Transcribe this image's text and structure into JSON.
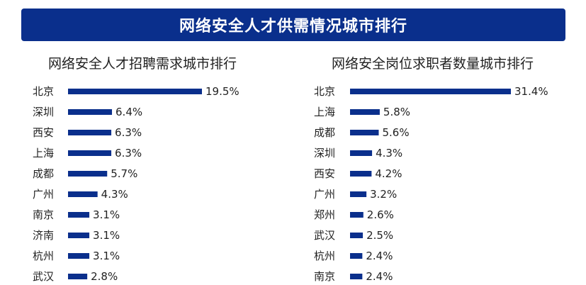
{
  "header": {
    "title": "网络安全人才供需情况城市排行"
  },
  "chart_data": [
    {
      "type": "bar",
      "orientation": "horizontal",
      "title": "网络安全人才招聘需求城市排行",
      "categories": [
        "北京",
        "深圳",
        "西安",
        "上海",
        "成都",
        "广州",
        "南京",
        "济南",
        "杭州",
        "武汉"
      ],
      "values": [
        19.5,
        6.4,
        6.3,
        6.3,
        5.7,
        4.3,
        3.1,
        3.1,
        3.1,
        2.8
      ],
      "labels": [
        "19.5%",
        "6.4%",
        "6.3%",
        "6.3%",
        "5.7%",
        "4.3%",
        "3.1%",
        "3.1%",
        "3.1%",
        "2.8%"
      ],
      "bar_color": "#0a2f8c",
      "grid": false
    },
    {
      "type": "bar",
      "orientation": "horizontal",
      "title": "网络安全岗位求职者数量城市排行",
      "categories": [
        "北京",
        "上海",
        "成都",
        "深圳",
        "西安",
        "广州",
        "郑州",
        "武汉",
        "杭州",
        "南京"
      ],
      "values": [
        31.4,
        5.8,
        5.6,
        4.3,
        4.2,
        3.2,
        2.6,
        2.5,
        2.4,
        2.4
      ],
      "labels": [
        "31.4%",
        "5.8%",
        "5.6%",
        "4.3%",
        "4.2%",
        "3.2%",
        "2.6%",
        "2.5%",
        "2.4%",
        "2.4%"
      ],
      "bar_color": "#0a2f8c",
      "grid": false
    }
  ]
}
